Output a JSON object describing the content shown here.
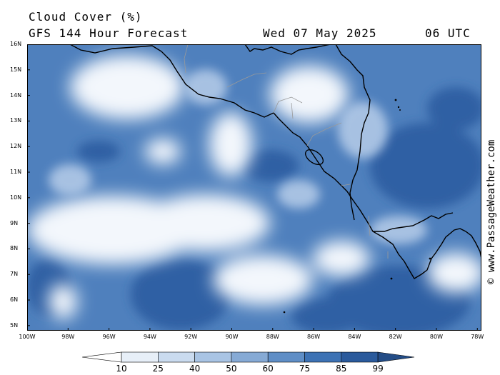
{
  "header": {
    "title": "Cloud Cover (%)",
    "subtitle": "GFS 144 Hour Forecast",
    "date": "Wed 07 May 2025",
    "time": "06 UTC"
  },
  "credit": "© www.PassageWeather.com",
  "map": {
    "lat_labels": [
      "16N",
      "15N",
      "14N",
      "13N",
      "12N",
      "11N",
      "10N",
      "9N",
      "8N",
      "7N",
      "6N",
      "5N"
    ],
    "lon_labels": [
      "100W",
      "98W",
      "96W",
      "94W",
      "92W",
      "90W",
      "88W",
      "86W",
      "84W",
      "82W",
      "80W",
      "78W"
    ],
    "lat_range": [
      4.8,
      16.0
    ],
    "lon_range": [
      -100.0,
      -77.8
    ],
    "colors": {
      "sea_dark": "#2e5fa3",
      "mid": "#5b89c3",
      "light": "#a9c4e4",
      "clear": "#f3f7fc",
      "coast": "#000000",
      "border": "#9a9a9a"
    }
  },
  "legend": {
    "levels": [
      "10",
      "25",
      "40",
      "50",
      "60",
      "75",
      "85",
      "99"
    ],
    "colors": [
      "#ffffff",
      "#e7eff8",
      "#cadbef",
      "#a9c4e4",
      "#86aad5",
      "#5f8ec6",
      "#3d72b4",
      "#2a5a9c",
      "#234c86"
    ]
  }
}
